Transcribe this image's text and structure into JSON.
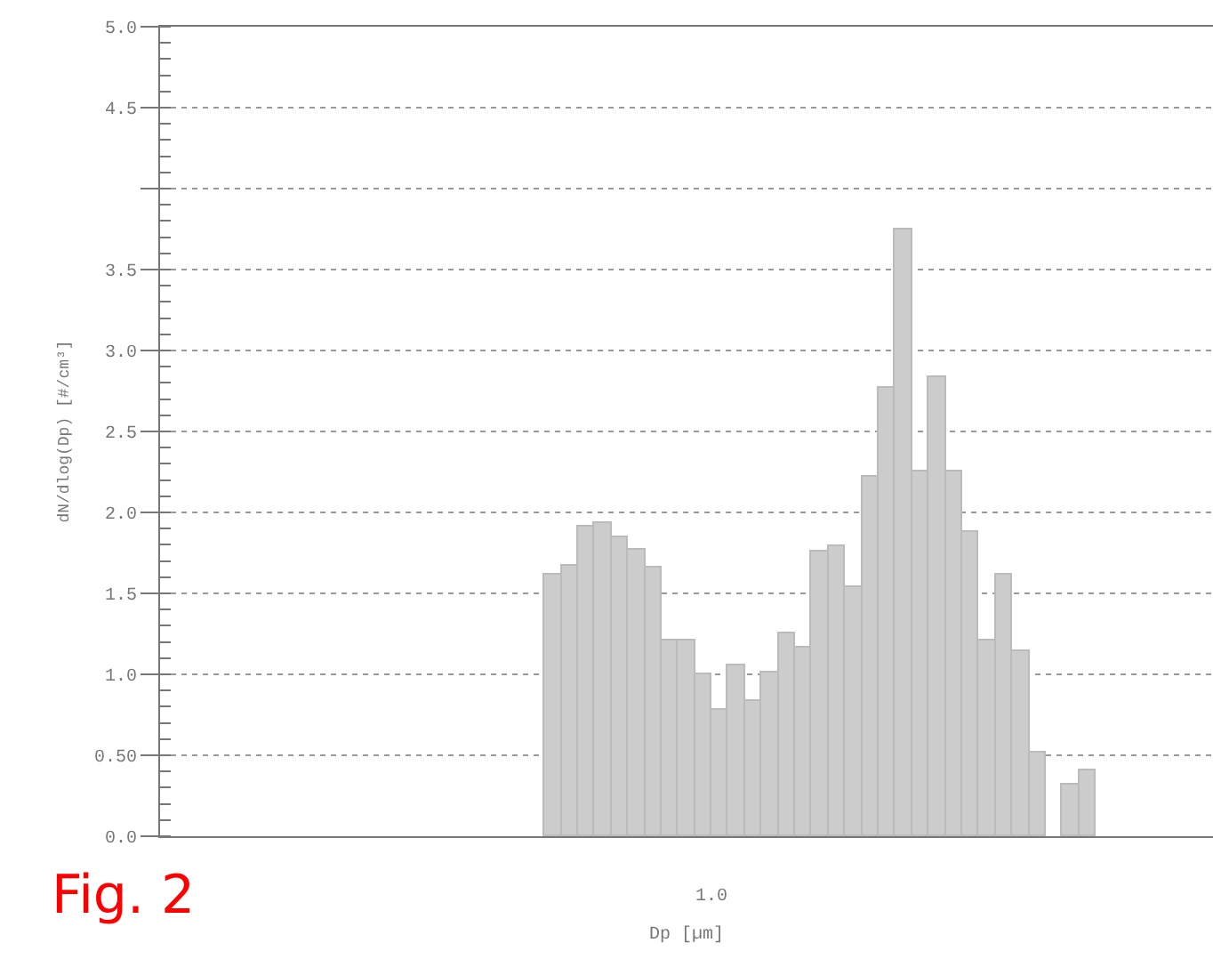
{
  "chart_data": {
    "type": "bar",
    "xlabel": "Dp [µm]",
    "ylabel": "dN/dlog(Dp) [#/cm³]",
    "categories": [
      null,
      null,
      null,
      null,
      null,
      null,
      null,
      null,
      null,
      null,
      null,
      null,
      null,
      null,
      null,
      null,
      null,
      null,
      null,
      null,
      null,
      null,
      null,
      null,
      null,
      null,
      null,
      null,
      null,
      null,
      null,
      null,
      null,
      null,
      null,
      null,
      null,
      null,
      null,
      null,
      null,
      null,
      null,
      null,
      null,
      null,
      null,
      null,
      null,
      null,
      null,
      null,
      null,
      null,
      null,
      null,
      null,
      null,
      null,
      null,
      null,
      null,
      null
    ],
    "values": [
      null,
      null,
      null,
      null,
      null,
      null,
      null,
      null,
      null,
      null,
      null,
      null,
      null,
      null,
      null,
      null,
      null,
      null,
      null,
      null,
      null,
      null,
      null,
      1.61,
      1.67,
      1.91,
      1.93,
      1.85,
      1.77,
      1.66,
      1.21,
      1.21,
      1.0,
      0.78,
      1.05,
      0.84,
      1.01,
      1.25,
      1.16,
      1.76,
      1.79,
      1.54,
      2.22,
      2.77,
      3.75,
      2.25,
      2.84,
      2.25,
      1.88,
      1.21,
      1.61,
      1.14,
      0.52,
      null,
      0.32,
      0.41,
      null,
      null,
      null,
      null,
      null,
      null,
      null
    ],
    "color": "#cccccc",
    "ylim": [
      0,
      5
    ],
    "yticks": [
      {
        "value": 0,
        "label": "0.0"
      },
      {
        "value": 0.5,
        "label": "0.50"
      },
      {
        "value": 1,
        "label": "1.0"
      },
      {
        "value": 1.5,
        "label": "1.5"
      },
      {
        "value": 2,
        "label": "2.0"
      },
      {
        "value": 2.5,
        "label": "2.5"
      },
      {
        "value": 3,
        "label": "3.0"
      },
      {
        "value": 3.5,
        "label": "3.5"
      },
      {
        "value": 4,
        "label": null
      },
      {
        "value": 4.5,
        "label": "4.5"
      },
      {
        "value": 5,
        "label": "5.0"
      }
    ],
    "grid": "y",
    "annotations": [
      "1.0",
      "Fig. 2"
    ]
  }
}
